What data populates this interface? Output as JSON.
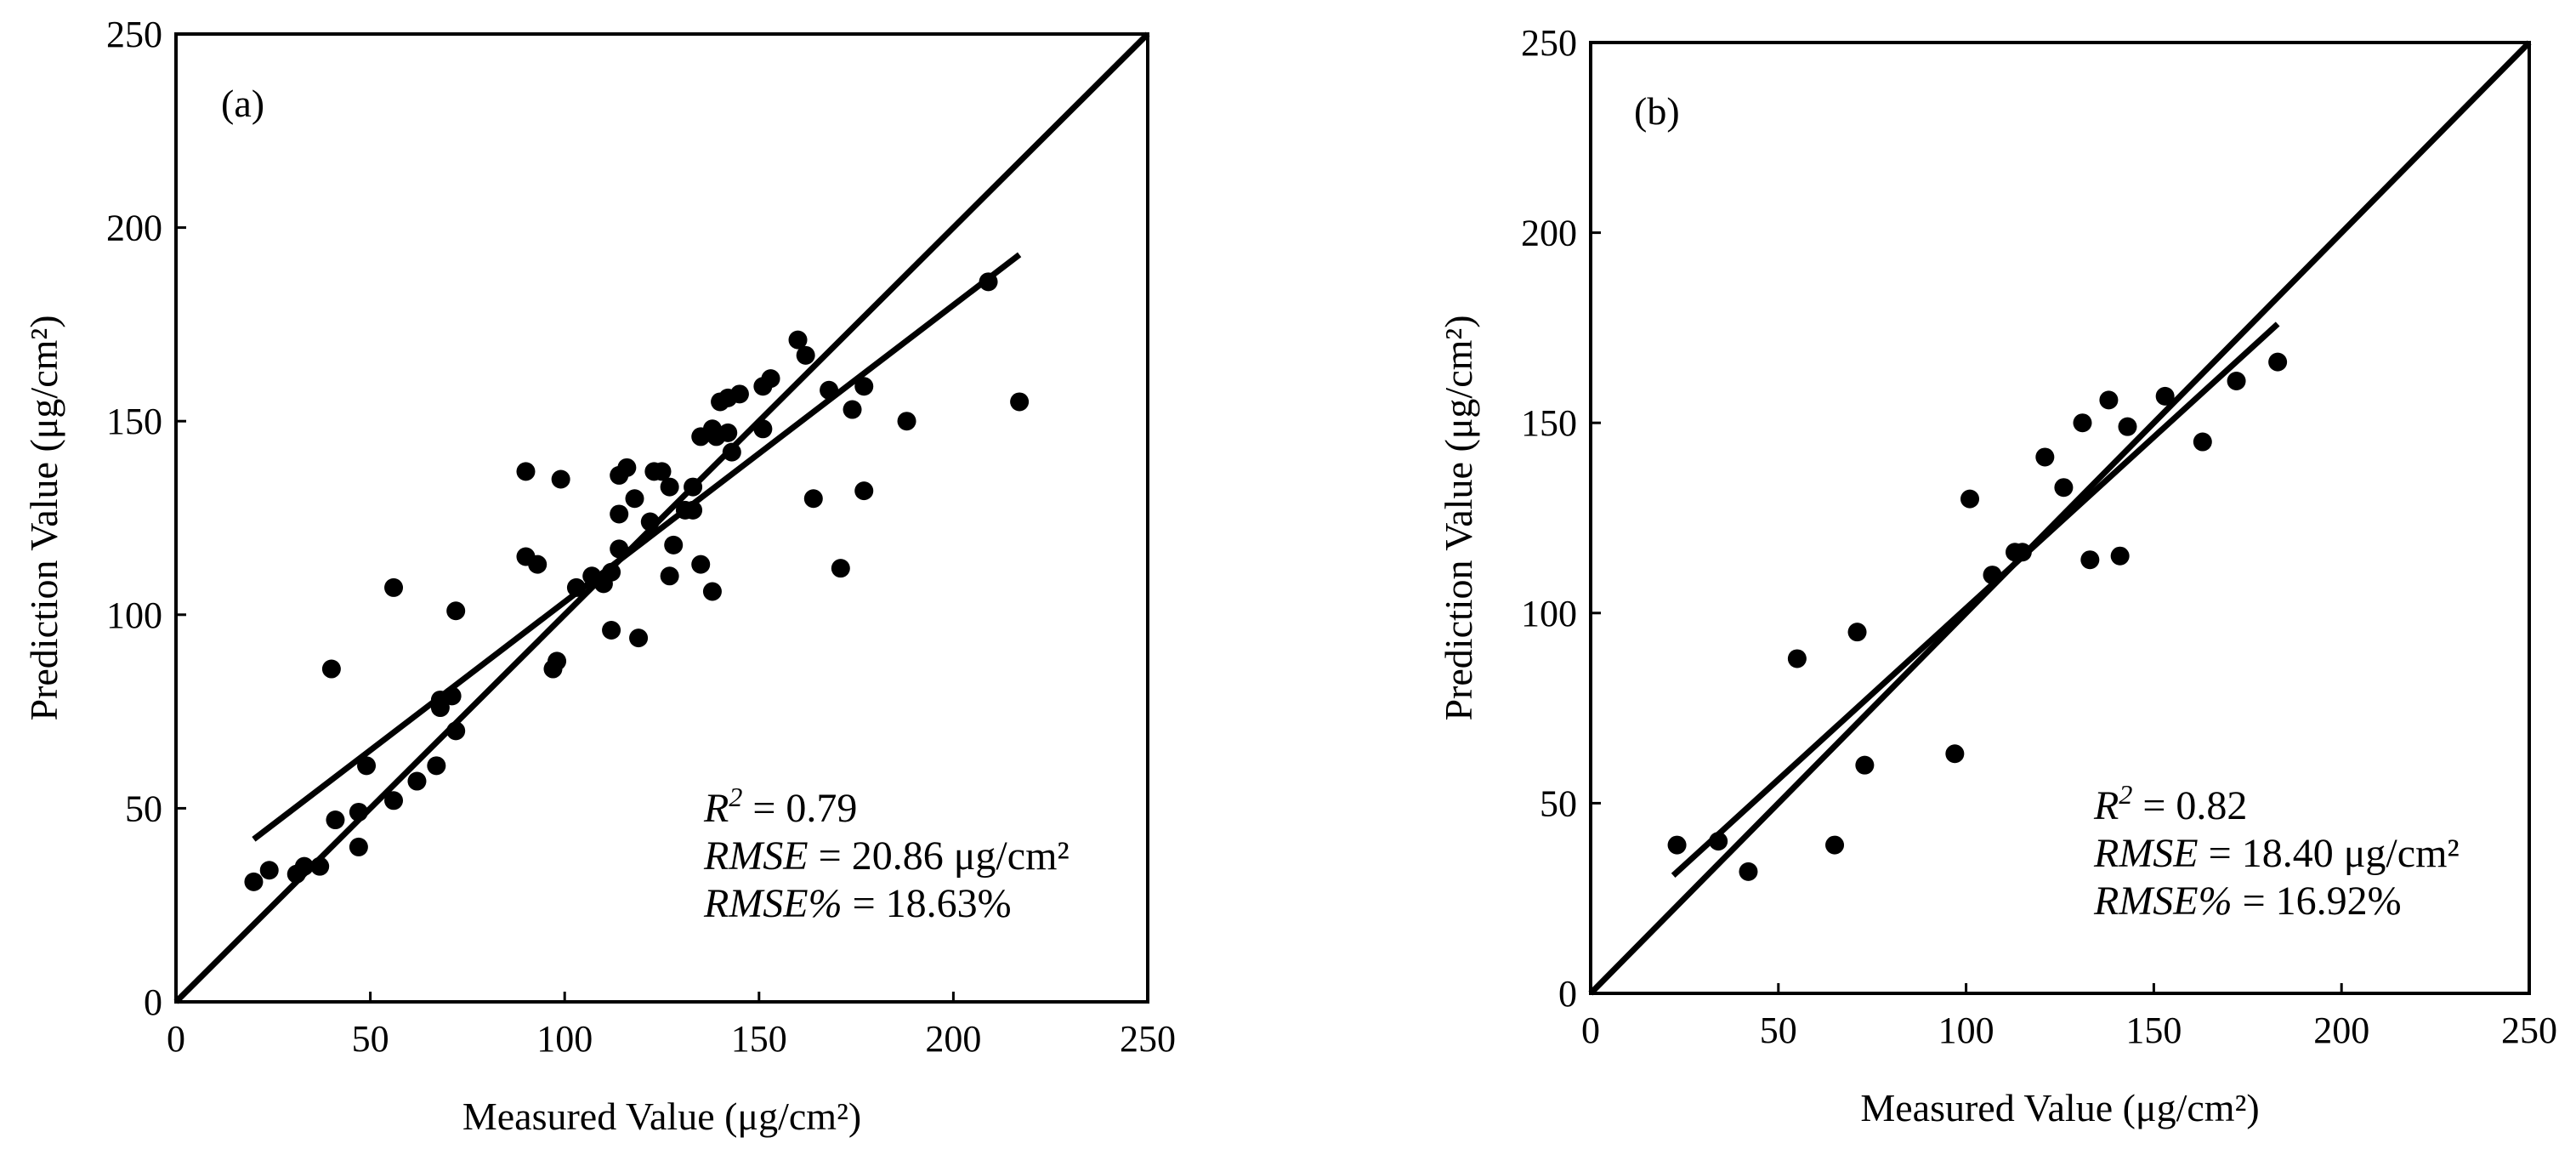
{
  "chart_data": [
    {
      "type": "scatter",
      "panel_label": "(a)",
      "title": "",
      "xlabel": "Measured Value (μg/cm²)",
      "ylabel": "Prediction Value (μg/cm²)",
      "xlim": [
        0,
        250
      ],
      "ylim": [
        0,
        250
      ],
      "xticks": [
        0,
        50,
        100,
        150,
        200,
        250
      ],
      "yticks": [
        0,
        50,
        100,
        150,
        200,
        250
      ],
      "grid": false,
      "one_to_one_line": [
        [
          0,
          0
        ],
        [
          250,
          250
        ]
      ],
      "fit_line": [
        [
          20,
          42
        ],
        [
          217,
          193
        ]
      ],
      "stats": [
        {
          "name": "R",
          "sup": "2",
          "value": " = 0.79"
        },
        {
          "name": "RMSE",
          "sup": "",
          "value": " = 20.86 μg/cm²"
        },
        {
          "name": "RMSE%",
          "sup": "",
          "value": " = 18.63%"
        }
      ],
      "points": [
        [
          20,
          31
        ],
        [
          24,
          34
        ],
        [
          31,
          33
        ],
        [
          33,
          35
        ],
        [
          37,
          35
        ],
        [
          40,
          86
        ],
        [
          41,
          47
        ],
        [
          47,
          40
        ],
        [
          47,
          49
        ],
        [
          49,
          61
        ],
        [
          56,
          52
        ],
        [
          56,
          107
        ],
        [
          62,
          57
        ],
        [
          67,
          61
        ],
        [
          68,
          76
        ],
        [
          68,
          78
        ],
        [
          71,
          79
        ],
        [
          72,
          70
        ],
        [
          72,
          101
        ],
        [
          90,
          137
        ],
        [
          90,
          115
        ],
        [
          93,
          113
        ],
        [
          97,
          86
        ],
        [
          98,
          88
        ],
        [
          99,
          135
        ],
        [
          103,
          107
        ],
        [
          107,
          110
        ],
        [
          110,
          108
        ],
        [
          112,
          111
        ],
        [
          112,
          96
        ],
        [
          114,
          136
        ],
        [
          114,
          126
        ],
        [
          114,
          117
        ],
        [
          116,
          138
        ],
        [
          118,
          130
        ],
        [
          119,
          94
        ],
        [
          122,
          124
        ],
        [
          123,
          137
        ],
        [
          125,
          137
        ],
        [
          127,
          110
        ],
        [
          127,
          133
        ],
        [
          128,
          118
        ],
        [
          131,
          127
        ],
        [
          133,
          133
        ],
        [
          133,
          127
        ],
        [
          135,
          146
        ],
        [
          135,
          113
        ],
        [
          138,
          106
        ],
        [
          138,
          148
        ],
        [
          139,
          146
        ],
        [
          140,
          155
        ],
        [
          142,
          147
        ],
        [
          142,
          156
        ],
        [
          143,
          142
        ],
        [
          145,
          157
        ],
        [
          151,
          148
        ],
        [
          151,
          159
        ],
        [
          153,
          161
        ],
        [
          160,
          171
        ],
        [
          162,
          167
        ],
        [
          164,
          130
        ],
        [
          168,
          158
        ],
        [
          171,
          112
        ],
        [
          174,
          153
        ],
        [
          177,
          132
        ],
        [
          177,
          159
        ],
        [
          188,
          150
        ],
        [
          209,
          186
        ],
        [
          217,
          155
        ]
      ]
    },
    {
      "type": "scatter",
      "panel_label": "(b)",
      "title": "",
      "xlabel": "Measured Value (μg/cm²)",
      "ylabel": "Prediction Value (μg/cm²)",
      "xlim": [
        0,
        250
      ],
      "ylim": [
        0,
        250
      ],
      "xticks": [
        0,
        50,
        100,
        150,
        200,
        250
      ],
      "yticks": [
        0,
        50,
        100,
        150,
        200,
        250
      ],
      "grid": false,
      "one_to_one_line": [
        [
          0,
          0
        ],
        [
          250,
          250
        ]
      ],
      "fit_line": [
        [
          22,
          31
        ],
        [
          183,
          176
        ]
      ],
      "stats": [
        {
          "name": "R",
          "sup": "2",
          "value": " = 0.82"
        },
        {
          "name": "RMSE",
          "sup": "",
          "value": " = 18.40 μg/cm²"
        },
        {
          "name": "RMSE%",
          "sup": "",
          "value": " = 16.92%"
        }
      ],
      "points": [
        [
          23,
          39
        ],
        [
          34,
          40
        ],
        [
          42,
          32
        ],
        [
          55,
          88
        ],
        [
          65,
          39
        ],
        [
          71,
          95
        ],
        [
          73,
          60
        ],
        [
          97,
          63
        ],
        [
          101,
          130
        ],
        [
          107,
          110
        ],
        [
          113,
          116
        ],
        [
          115,
          116
        ],
        [
          121,
          141
        ],
        [
          126,
          133
        ],
        [
          131,
          150
        ],
        [
          133,
          114
        ],
        [
          138,
          156
        ],
        [
          141,
          115
        ],
        [
          143,
          149
        ],
        [
          153,
          157
        ],
        [
          163,
          145
        ],
        [
          172,
          161
        ],
        [
          183,
          166
        ]
      ]
    }
  ]
}
